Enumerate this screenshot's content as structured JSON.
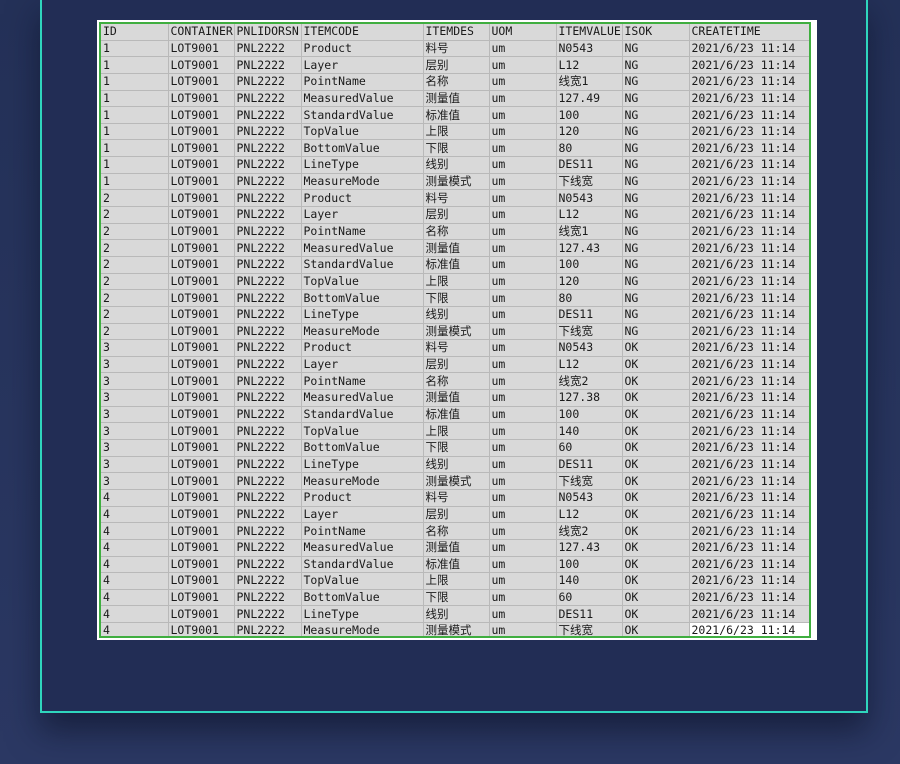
{
  "colors": {
    "panel_border": "#2fd6bd",
    "selection_border": "#3fae3f",
    "cell_bg": "#d9d9d9"
  },
  "columns": [
    "ID",
    "CONTAINER",
    "PNLIDORSN",
    "ITEMCODE",
    "ITEMDES",
    "UOM",
    "ITEMVALUE",
    "ISOK",
    "CREATETIME"
  ],
  "rows": [
    [
      "1",
      "LOT9001",
      "PNL2222",
      "Product",
      "料号",
      "um",
      "N0543",
      "NG",
      "2021/6/23 11:14"
    ],
    [
      "1",
      "LOT9001",
      "PNL2222",
      "Layer",
      "层别",
      "um",
      "L12",
      "NG",
      "2021/6/23 11:14"
    ],
    [
      "1",
      "LOT9001",
      "PNL2222",
      "PointName",
      "名称",
      "um",
      "线宽1",
      "NG",
      "2021/6/23 11:14"
    ],
    [
      "1",
      "LOT9001",
      "PNL2222",
      "MeasuredValue",
      "测量值",
      "um",
      "127.49",
      "NG",
      "2021/6/23 11:14"
    ],
    [
      "1",
      "LOT9001",
      "PNL2222",
      "StandardValue",
      "标准值",
      "um",
      "100",
      "NG",
      "2021/6/23 11:14"
    ],
    [
      "1",
      "LOT9001",
      "PNL2222",
      "TopValue",
      "上限",
      "um",
      "120",
      "NG",
      "2021/6/23 11:14"
    ],
    [
      "1",
      "LOT9001",
      "PNL2222",
      "BottomValue",
      "下限",
      "um",
      "80",
      "NG",
      "2021/6/23 11:14"
    ],
    [
      "1",
      "LOT9001",
      "PNL2222",
      "LineType",
      "线别",
      "um",
      "DES11",
      "NG",
      "2021/6/23 11:14"
    ],
    [
      "1",
      "LOT9001",
      "PNL2222",
      "MeasureMode",
      "测量模式",
      "um",
      "下线宽",
      "NG",
      "2021/6/23 11:14"
    ],
    [
      "2",
      "LOT9001",
      "PNL2222",
      "Product",
      "料号",
      "um",
      "N0543",
      "NG",
      "2021/6/23 11:14"
    ],
    [
      "2",
      "LOT9001",
      "PNL2222",
      "Layer",
      "层别",
      "um",
      "L12",
      "NG",
      "2021/6/23 11:14"
    ],
    [
      "2",
      "LOT9001",
      "PNL2222",
      "PointName",
      "名称",
      "um",
      "线宽1",
      "NG",
      "2021/6/23 11:14"
    ],
    [
      "2",
      "LOT9001",
      "PNL2222",
      "MeasuredValue",
      "测量值",
      "um",
      "127.43",
      "NG",
      "2021/6/23 11:14"
    ],
    [
      "2",
      "LOT9001",
      "PNL2222",
      "StandardValue",
      "标准值",
      "um",
      "100",
      "NG",
      "2021/6/23 11:14"
    ],
    [
      "2",
      "LOT9001",
      "PNL2222",
      "TopValue",
      "上限",
      "um",
      "120",
      "NG",
      "2021/6/23 11:14"
    ],
    [
      "2",
      "LOT9001",
      "PNL2222",
      "BottomValue",
      "下限",
      "um",
      "80",
      "NG",
      "2021/6/23 11:14"
    ],
    [
      "2",
      "LOT9001",
      "PNL2222",
      "LineType",
      "线别",
      "um",
      "DES11",
      "NG",
      "2021/6/23 11:14"
    ],
    [
      "2",
      "LOT9001",
      "PNL2222",
      "MeasureMode",
      "测量模式",
      "um",
      "下线宽",
      "NG",
      "2021/6/23 11:14"
    ],
    [
      "3",
      "LOT9001",
      "PNL2222",
      "Product",
      "料号",
      "um",
      "N0543",
      "OK",
      "2021/6/23 11:14"
    ],
    [
      "3",
      "LOT9001",
      "PNL2222",
      "Layer",
      "层别",
      "um",
      "L12",
      "OK",
      "2021/6/23 11:14"
    ],
    [
      "3",
      "LOT9001",
      "PNL2222",
      "PointName",
      "名称",
      "um",
      "线宽2",
      "OK",
      "2021/6/23 11:14"
    ],
    [
      "3",
      "LOT9001",
      "PNL2222",
      "MeasuredValue",
      "测量值",
      "um",
      "127.38",
      "OK",
      "2021/6/23 11:14"
    ],
    [
      "3",
      "LOT9001",
      "PNL2222",
      "StandardValue",
      "标准值",
      "um",
      "100",
      "OK",
      "2021/6/23 11:14"
    ],
    [
      "3",
      "LOT9001",
      "PNL2222",
      "TopValue",
      "上限",
      "um",
      "140",
      "OK",
      "2021/6/23 11:14"
    ],
    [
      "3",
      "LOT9001",
      "PNL2222",
      "BottomValue",
      "下限",
      "um",
      "60",
      "OK",
      "2021/6/23 11:14"
    ],
    [
      "3",
      "LOT9001",
      "PNL2222",
      "LineType",
      "线别",
      "um",
      "DES11",
      "OK",
      "2021/6/23 11:14"
    ],
    [
      "3",
      "LOT9001",
      "PNL2222",
      "MeasureMode",
      "测量模式",
      "um",
      "下线宽",
      "OK",
      "2021/6/23 11:14"
    ],
    [
      "4",
      "LOT9001",
      "PNL2222",
      "Product",
      "料号",
      "um",
      "N0543",
      "OK",
      "2021/6/23 11:14"
    ],
    [
      "4",
      "LOT9001",
      "PNL2222",
      "Layer",
      "层别",
      "um",
      "L12",
      "OK",
      "2021/6/23 11:14"
    ],
    [
      "4",
      "LOT9001",
      "PNL2222",
      "PointName",
      "名称",
      "um",
      "线宽2",
      "OK",
      "2021/6/23 11:14"
    ],
    [
      "4",
      "LOT9001",
      "PNL2222",
      "MeasuredValue",
      "测量值",
      "um",
      "127.43",
      "OK",
      "2021/6/23 11:14"
    ],
    [
      "4",
      "LOT9001",
      "PNL2222",
      "StandardValue",
      "标准值",
      "um",
      "100",
      "OK",
      "2021/6/23 11:14"
    ],
    [
      "4",
      "LOT9001",
      "PNL2222",
      "TopValue",
      "上限",
      "um",
      "140",
      "OK",
      "2021/6/23 11:14"
    ],
    [
      "4",
      "LOT9001",
      "PNL2222",
      "BottomValue",
      "下限",
      "um",
      "60",
      "OK",
      "2021/6/23 11:14"
    ],
    [
      "4",
      "LOT9001",
      "PNL2222",
      "LineType",
      "线别",
      "um",
      "DES11",
      "OK",
      "2021/6/23 11:14"
    ],
    [
      "4",
      "LOT9001",
      "PNL2222",
      "MeasureMode",
      "测量模式",
      "um",
      "下线宽",
      "OK",
      "2021/6/23 11:14"
    ]
  ]
}
